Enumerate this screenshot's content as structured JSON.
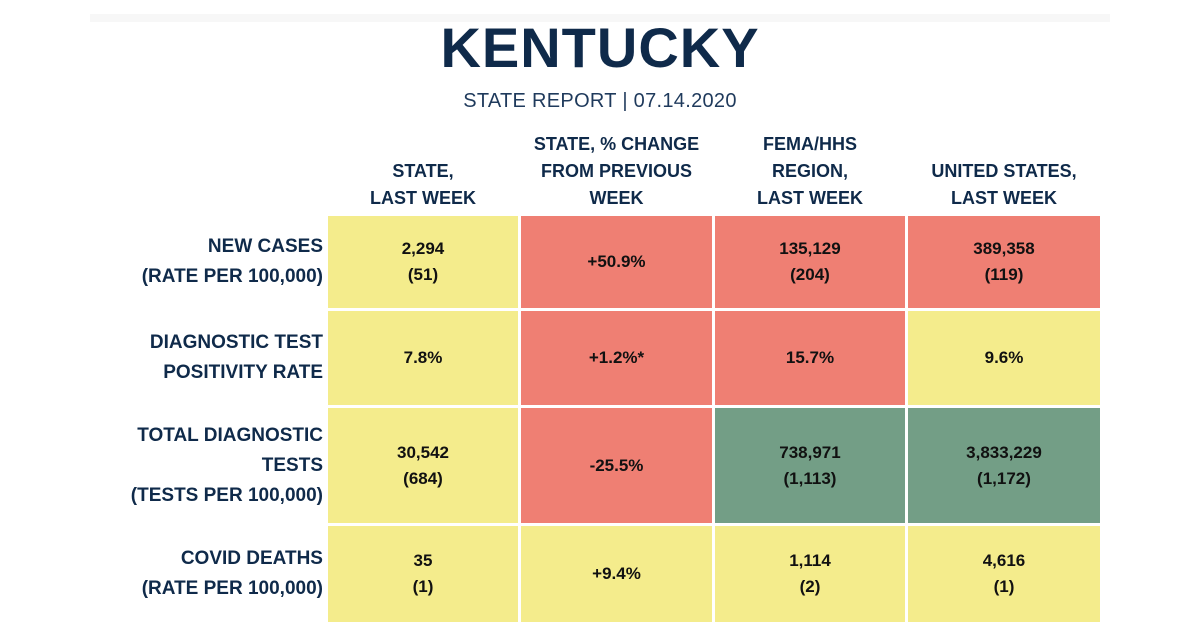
{
  "title": "KENTUCKY",
  "subtitle": "STATE REPORT | 07.14.2020",
  "colors": {
    "yellow": "#f4ec8c",
    "red": "#ef7f73",
    "green": "#739e86",
    "navy": "#0f2a4a"
  },
  "columns": [
    "STATE,\nLAST WEEK",
    "STATE, % CHANGE\nFROM PREVIOUS\nWEEK",
    "FEMA/HHS\nREGION,\nLAST WEEK",
    "UNITED STATES,\nLAST WEEK"
  ],
  "rows": [
    {
      "label": "NEW CASES\n(RATE PER 100,000)",
      "cells": [
        {
          "value": "2,294\n(51)",
          "status": "yellow"
        },
        {
          "value": "+50.9%",
          "status": "red"
        },
        {
          "value": "135,129\n(204)",
          "status": "red"
        },
        {
          "value": "389,358\n(119)",
          "status": "red"
        }
      ]
    },
    {
      "label": "DIAGNOSTIC TEST\nPOSITIVITY RATE",
      "cells": [
        {
          "value": "7.8%",
          "status": "yellow"
        },
        {
          "value": "+1.2%*",
          "status": "red"
        },
        {
          "value": "15.7%",
          "status": "red"
        },
        {
          "value": "9.6%",
          "status": "yellow"
        }
      ]
    },
    {
      "label": "TOTAL DIAGNOSTIC\nTESTS\n(TESTS PER 100,000)",
      "cells": [
        {
          "value": "30,542\n(684)",
          "status": "yellow"
        },
        {
          "value": "-25.5%",
          "status": "red"
        },
        {
          "value": "738,971\n(1,113)",
          "status": "green"
        },
        {
          "value": "3,833,229\n(1,172)",
          "status": "green"
        }
      ]
    },
    {
      "label": "COVID DEATHS\n(RATE PER 100,000)",
      "cells": [
        {
          "value": "35\n(1)",
          "status": "yellow"
        },
        {
          "value": "+9.4%",
          "status": "yellow"
        },
        {
          "value": "1,114\n(2)",
          "status": "yellow"
        },
        {
          "value": "4,616\n(1)",
          "status": "yellow"
        }
      ]
    }
  ]
}
